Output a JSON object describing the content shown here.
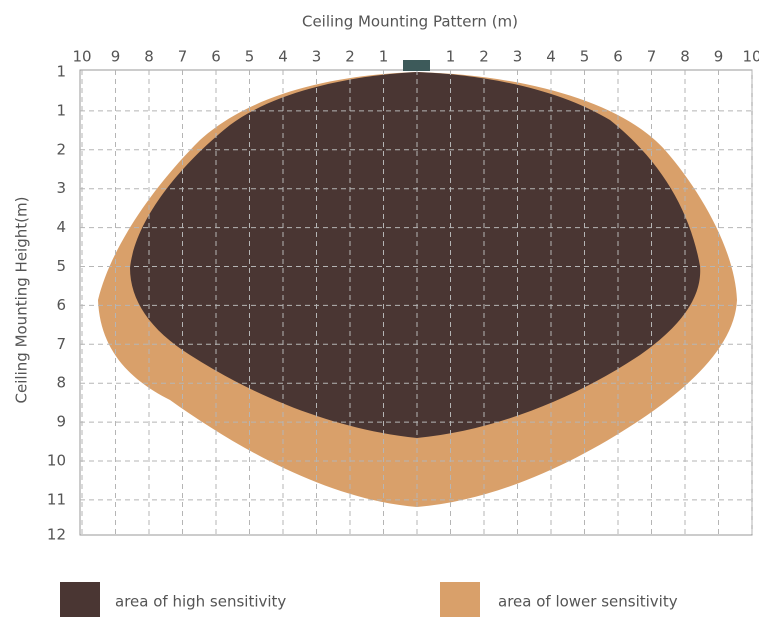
{
  "title": "Ceiling Mounting Pattern (m)",
  "y_axis_label": "Ceiling Mounting Height(m)",
  "x_labels": [
    10,
    9,
    8,
    7,
    6,
    5,
    4,
    3,
    2,
    1,
    1,
    2,
    3,
    4,
    5,
    6,
    7,
    8,
    9,
    10
  ],
  "y_labels": [
    1,
    1,
    2,
    3,
    4,
    5,
    6,
    7,
    8,
    9,
    10,
    11,
    12
  ],
  "legend": [
    "area of high sensitivity",
    "area of lower sensitivity"
  ]
}
